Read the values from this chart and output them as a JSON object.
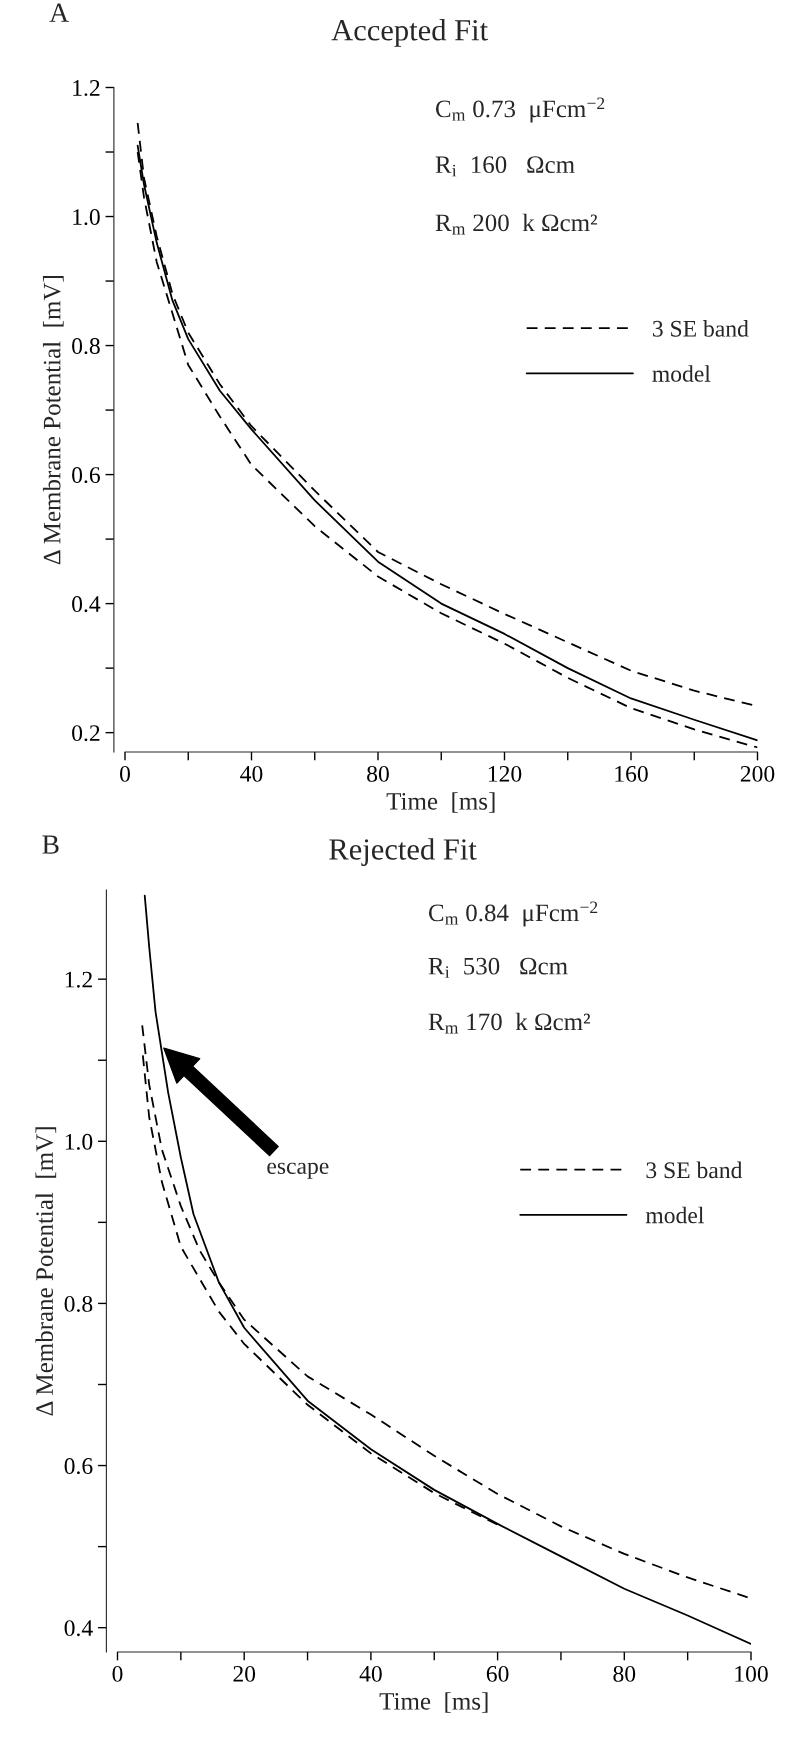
{
  "chart_data": [
    {
      "type": "line",
      "title": "Accepted Fit",
      "xlabel": "Time  [ms]",
      "ylabel": "Δ Membrane Potential  [mV]",
      "xlim": [
        0,
        200
      ],
      "ylim": [
        0.17,
        1.2
      ],
      "xticks": [
        0,
        {
          "value": 20,
          "label": null
        },
        40,
        {
          "value": 60,
          "label": null
        },
        80,
        {
          "value": 100,
          "label": null
        },
        120,
        {
          "value": 140,
          "label": null
        },
        160,
        {
          "value": 180,
          "label": null
        },
        200
      ],
      "yticks": [
        0.2,
        {
          "value": 0.3,
          "label": null
        },
        0.4,
        {
          "value": 0.5,
          "label": null
        },
        0.6,
        {
          "value": 0.7,
          "label": null
        },
        0.8,
        {
          "value": 0.9,
          "label": null
        },
        {
          "value": 1.0,
          "label": "1.0"
        },
        {
          "value": 1.1,
          "label": null
        },
        1.2
      ],
      "legend": "right",
      "grid": false,
      "annotations": [
        "A",
        "C$_{m}$ 0.73  μFcm$^{−2}$",
        "R$_{i}$  160   Ωcm",
        "R$_{m}$ 200  k Ωcm²"
      ],
      "series": [
        {
          "name": "3 SE band",
          "color": "#000000",
          "line_style": "dashed",
          "x": [
            4,
            6,
            10,
            15,
            20,
            30,
            40,
            60,
            80,
            100,
            120,
            140,
            160,
            180,
            200
          ],
          "values": [
            1.145,
            1.06,
            0.97,
            0.88,
            0.82,
            0.74,
            0.675,
            0.575,
            0.48,
            0.43,
            0.384,
            0.34,
            0.296,
            0.265,
            0.241
          ]
        },
        {
          "color": "#000000",
          "line_style": "dashed",
          "x": [
            4,
            6,
            10,
            15,
            20,
            30,
            40,
            60,
            80,
            100,
            120,
            140,
            160,
            180,
            200
          ],
          "values": [
            1.1,
            1.03,
            0.93,
            0.85,
            0.77,
            0.69,
            0.615,
            0.52,
            0.442,
            0.385,
            0.338,
            0.285,
            0.238,
            0.205,
            0.177
          ]
        },
        {
          "name": "model",
          "color": "#000000",
          "line_style": "solid",
          "x": [
            4,
            6,
            10,
            15,
            20,
            30,
            40,
            60,
            80,
            100,
            120,
            140,
            160,
            180,
            200
          ],
          "values": [
            1.11,
            1.05,
            0.96,
            0.87,
            0.81,
            0.73,
            0.67,
            0.56,
            0.465,
            0.4,
            0.353,
            0.3,
            0.253,
            0.22,
            0.188
          ]
        }
      ]
    },
    {
      "type": "line",
      "title": "Rejected Fit",
      "xlabel": "Time  [ms]",
      "ylabel": "Δ Membrane Potential  [mV]",
      "xlim": [
        0,
        100
      ],
      "ylim": [
        0.37,
        1.31
      ],
      "xticks": [
        0,
        {
          "value": 10,
          "label": null
        },
        20,
        {
          "value": 30,
          "label": null
        },
        40,
        {
          "value": 50,
          "label": null
        },
        60,
        {
          "value": 70,
          "label": null
        },
        80,
        {
          "value": 90,
          "label": null
        },
        100
      ],
      "yticks": [
        0.4,
        {
          "value": 0.5,
          "label": null
        },
        0.6,
        {
          "value": 0.7,
          "label": null
        },
        0.8,
        {
          "value": 0.9,
          "label": null
        },
        {
          "value": 1.0,
          "label": "1.0"
        },
        {
          "value": 1.1,
          "label": null
        },
        1.2
      ],
      "legend": "right",
      "grid": false,
      "annotations": [
        "B",
        "C$_{m}$ 0.84  μFcm$^{−2}$",
        "R$_{i}$  530   Ωcm",
        "R$_{m}$ 170  k Ωcm²",
        "escape"
      ],
      "series": [
        {
          "name": "3 SE band",
          "color": "#000000",
          "line_style": "dashed",
          "x": [
            3.9,
            5,
            7,
            10,
            13,
            16,
            20,
            30,
            40,
            50,
            60,
            70,
            80,
            90,
            100
          ],
          "values": [
            1.143,
            1.07,
            0.99,
            0.92,
            0.865,
            0.826,
            0.78,
            0.71,
            0.663,
            0.612,
            0.565,
            0.525,
            0.491,
            0.462,
            0.436
          ]
        },
        {
          "color": "#000000",
          "line_style": "dashed",
          "x": [
            4,
            5,
            7,
            10,
            13,
            16,
            20,
            30,
            40,
            50,
            60
          ],
          "values": [
            1.106,
            1.03,
            0.95,
            0.87,
            0.83,
            0.79,
            0.75,
            0.675,
            0.615,
            0.566,
            0.527
          ]
        },
        {
          "name": "model",
          "color": "#000000",
          "line_style": "solid",
          "x": [
            4.3,
            5,
            6,
            7,
            8,
            10,
            12,
            16,
            20,
            30,
            40,
            50,
            60,
            70,
            80,
            90,
            100
          ],
          "values": [
            1.303,
            1.24,
            1.16,
            1.11,
            1.06,
            0.98,
            0.91,
            0.826,
            0.77,
            0.68,
            0.62,
            0.57,
            0.528,
            0.488,
            0.448,
            0.415,
            0.38
          ]
        }
      ]
    }
  ]
}
